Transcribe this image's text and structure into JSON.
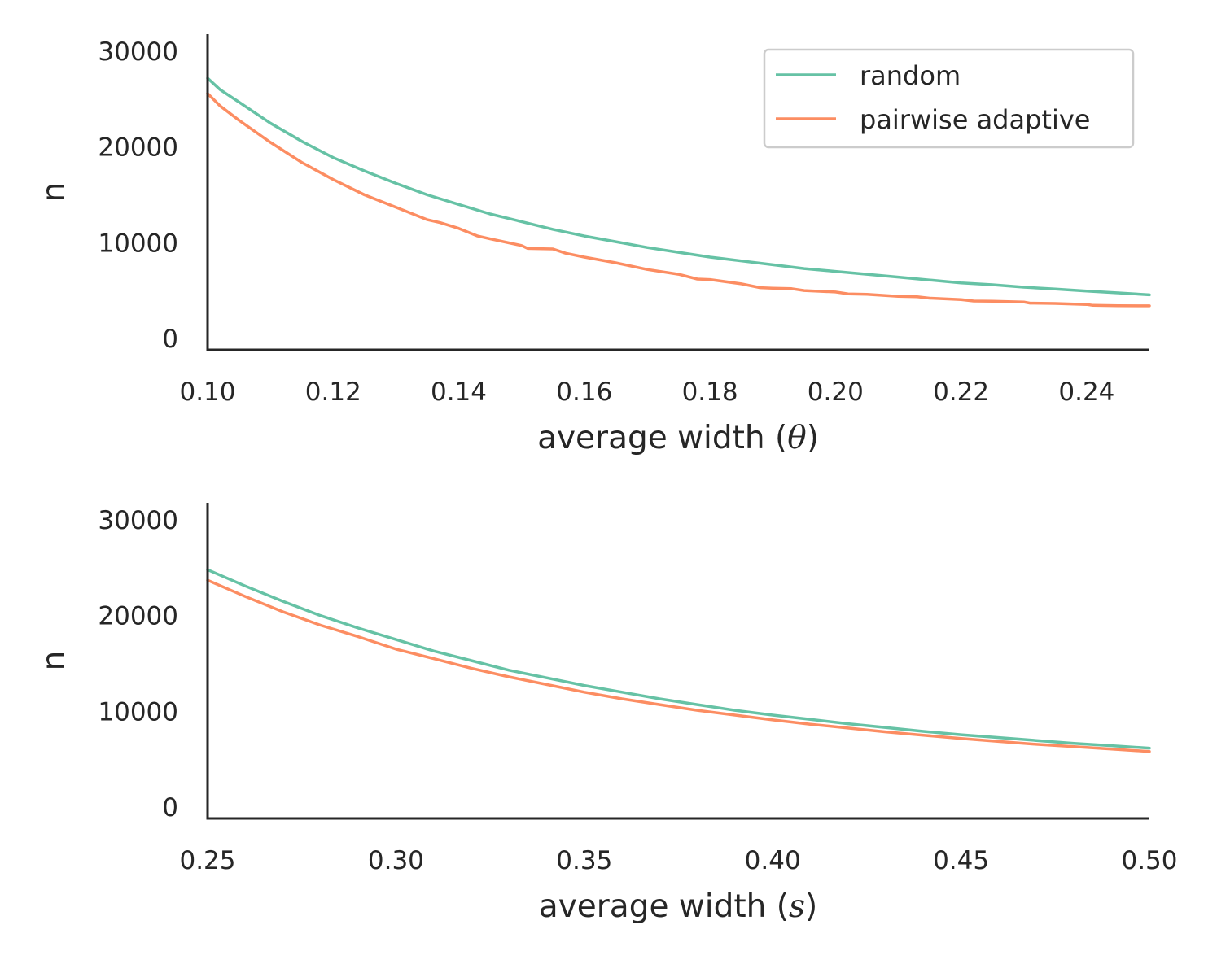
{
  "colors": {
    "random": "#66c2a5",
    "pairwise_adaptive": "#fc8d62"
  },
  "legend": {
    "placement": "upper-right",
    "entries": [
      {
        "label": "random",
        "color": "#66c2a5"
      },
      {
        "label": "pairwise adaptive",
        "color": "#fc8d62"
      }
    ]
  },
  "chart_data": [
    {
      "type": "line",
      "xlabel": "average width (θ)",
      "xlabel_main": "average width (",
      "xlabel_sym": "θ",
      "xlabel_close": ")",
      "ylabel": "n",
      "xlim": [
        0.1,
        0.25
      ],
      "ylim": [
        -1200,
        31800
      ],
      "xticks": [
        0.1,
        0.12,
        0.14,
        0.16,
        0.18,
        0.2,
        0.22,
        0.24
      ],
      "xtick_labels": [
        "0.10",
        "0.12",
        "0.14",
        "0.16",
        "0.18",
        "0.20",
        "0.22",
        "0.24"
      ],
      "yticks": [
        0,
        10000,
        20000,
        30000
      ],
      "ytick_labels": [
        "0",
        "10000",
        "20000",
        "30000"
      ],
      "grid": false,
      "series": [
        {
          "name": "random",
          "color": "#66c2a5",
          "x": [
            0.1,
            0.102,
            0.105,
            0.11,
            0.115,
            0.12,
            0.125,
            0.13,
            0.135,
            0.14,
            0.145,
            0.15,
            0.155,
            0.16,
            0.165,
            0.17,
            0.175,
            0.18,
            0.185,
            0.19,
            0.195,
            0.2,
            0.205,
            0.21,
            0.215,
            0.22,
            0.225,
            0.23,
            0.235,
            0.24,
            0.245,
            0.25
          ],
          "y": [
            27200,
            26000,
            24700,
            22500,
            20600,
            18900,
            17500,
            16200,
            15000,
            14000,
            13000,
            12200,
            11400,
            10700,
            10100,
            9500,
            9000,
            8500,
            8100,
            7700,
            7300,
            7000,
            6700,
            6400,
            6100,
            5800,
            5600,
            5350,
            5150,
            4950,
            4750,
            4550
          ]
        },
        {
          "name": "pairwise adaptive",
          "color": "#fc8d62",
          "x": [
            0.1,
            0.102,
            0.105,
            0.11,
            0.115,
            0.12,
            0.125,
            0.13,
            0.135,
            0.137,
            0.14,
            0.143,
            0.145,
            0.15,
            0.151,
            0.155,
            0.157,
            0.16,
            0.165,
            0.17,
            0.175,
            0.178,
            0.18,
            0.185,
            0.188,
            0.19,
            0.193,
            0.195,
            0.2,
            0.202,
            0.205,
            0.21,
            0.213,
            0.215,
            0.22,
            0.222,
            0.225,
            0.23,
            0.231,
            0.235,
            0.24,
            0.241,
            0.245,
            0.25
          ],
          "y": [
            25600,
            24300,
            22800,
            20500,
            18400,
            16600,
            15000,
            13700,
            12400,
            12100,
            11500,
            10700,
            10400,
            9700,
            9400,
            9350,
            8900,
            8500,
            7900,
            7200,
            6700,
            6200,
            6150,
            5700,
            5300,
            5250,
            5200,
            5000,
            4850,
            4650,
            4600,
            4400,
            4350,
            4200,
            4050,
            3900,
            3880,
            3800,
            3680,
            3650,
            3550,
            3450,
            3420,
            3400
          ]
        }
      ]
    },
    {
      "type": "line",
      "xlabel": "average width (s)",
      "xlabel_main": "average width (",
      "xlabel_sym": "s",
      "xlabel_close": ")",
      "ylabel": "n",
      "xlim": [
        0.25,
        0.5
      ],
      "ylim": [
        -1200,
        31800
      ],
      "xticks": [
        0.25,
        0.3,
        0.35,
        0.4,
        0.45,
        0.5
      ],
      "xtick_labels": [
        "0.25",
        "0.30",
        "0.35",
        "0.40",
        "0.45",
        "0.50"
      ],
      "yticks": [
        0,
        10000,
        20000,
        30000
      ],
      "ytick_labels": [
        "0",
        "10000",
        "20000",
        "30000"
      ],
      "grid": false,
      "series": [
        {
          "name": "random",
          "color": "#66c2a5",
          "x": [
            0.25,
            0.26,
            0.27,
            0.28,
            0.29,
            0.3,
            0.31,
            0.32,
            0.33,
            0.34,
            0.35,
            0.36,
            0.37,
            0.38,
            0.39,
            0.4,
            0.41,
            0.42,
            0.43,
            0.44,
            0.45,
            0.46,
            0.47,
            0.48,
            0.49,
            0.5
          ],
          "y": [
            24800,
            23100,
            21500,
            20000,
            18700,
            17500,
            16300,
            15300,
            14300,
            13500,
            12700,
            12000,
            11300,
            10700,
            10100,
            9600,
            9150,
            8700,
            8300,
            7900,
            7550,
            7250,
            6950,
            6650,
            6400,
            6150
          ]
        },
        {
          "name": "pairwise adaptive",
          "color": "#fc8d62",
          "x": [
            0.25,
            0.26,
            0.27,
            0.28,
            0.29,
            0.3,
            0.31,
            0.32,
            0.33,
            0.34,
            0.35,
            0.36,
            0.37,
            0.38,
            0.39,
            0.4,
            0.41,
            0.42,
            0.43,
            0.44,
            0.45,
            0.46,
            0.47,
            0.48,
            0.49,
            0.5
          ],
          "y": [
            23700,
            22000,
            20400,
            19000,
            17800,
            16500,
            15500,
            14500,
            13600,
            12800,
            12000,
            11300,
            10700,
            10100,
            9600,
            9100,
            8650,
            8250,
            7850,
            7500,
            7150,
            6850,
            6550,
            6300,
            6050,
            5800
          ]
        }
      ]
    }
  ]
}
